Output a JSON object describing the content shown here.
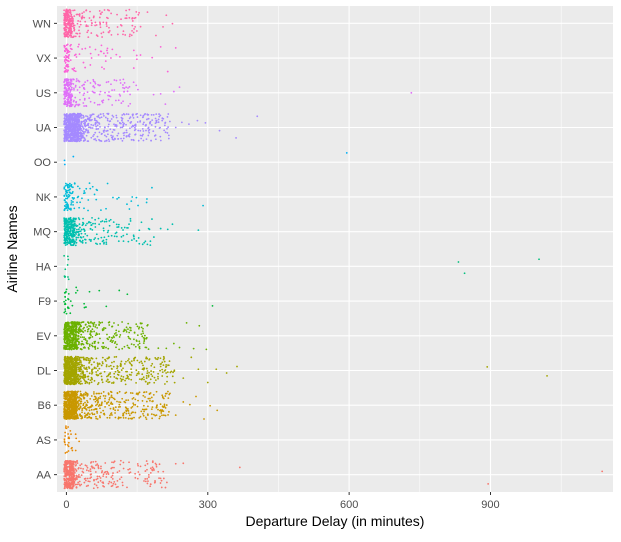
{
  "chart_data": {
    "type": "scatter",
    "title": "",
    "xlabel": "Departure Delay (in minutes)",
    "ylabel": "Airline Names",
    "xlim": [
      -20,
      1160
    ],
    "x_ticks": [
      0,
      300,
      600,
      900
    ],
    "x_tick_labels": [
      "0",
      "300",
      "600",
      "900"
    ],
    "categories": [
      "AA",
      "AS",
      "B6",
      "DL",
      "EV",
      "F9",
      "HA",
      "MQ",
      "NK",
      "OO",
      "UA",
      "US",
      "VX",
      "WN"
    ],
    "grid": true,
    "legend": "none",
    "jitter": "vertical jitter within each airline row",
    "colors": {
      "AA": "#F8766D",
      "AS": "#E58700",
      "B6": "#C99800",
      "DL": "#A3A500",
      "EV": "#6BB100",
      "F9": "#00BA38",
      "HA": "#00BF7D",
      "MQ": "#00C0AF",
      "NK": "#00BCD8",
      "OO": "#00B0F6",
      "UA": "#A58AFF",
      "US": "#DF70F8",
      "VX": "#FB61D7",
      "WN": "#FF66A8"
    },
    "panel_background": "#EBEBEB",
    "gridline_color": "#FFFFFF",
    "series": [
      {
        "category": "AA",
        "dense_max": 15,
        "spread_max": 215,
        "count": 520,
        "outliers": [
          232,
          248,
          368,
          895,
          1137
        ]
      },
      {
        "category": "AS",
        "dense_max": 5,
        "spread_max": 35,
        "count": 30,
        "outliers": []
      },
      {
        "category": "B6",
        "dense_max": 20,
        "spread_max": 220,
        "count": 900,
        "outliers": [
          232,
          248,
          262,
          275,
          292,
          305,
          320
        ]
      },
      {
        "category": "DL",
        "dense_max": 20,
        "spread_max": 230,
        "count": 900,
        "outliers": [
          248,
          265,
          280,
          300,
          318,
          340,
          362,
          893,
          1020
        ]
      },
      {
        "category": "EV",
        "dense_max": 20,
        "spread_max": 175,
        "count": 650,
        "outliers": [
          195,
          212,
          228,
          240,
          255,
          270,
          282,
          297
        ]
      },
      {
        "category": "F9",
        "dense_max": 5,
        "spread_max": 150,
        "count": 35,
        "outliers": [
          310
        ]
      },
      {
        "category": "HA",
        "dense_max": 3,
        "spread_max": 15,
        "count": 10,
        "outliers": [
          832,
          845,
          1003
        ]
      },
      {
        "category": "MQ",
        "dense_max": 15,
        "spread_max": 190,
        "count": 430,
        "outliers": [
          200,
          215,
          225,
          280
        ]
      },
      {
        "category": "NK",
        "dense_max": 10,
        "spread_max": 190,
        "count": 120,
        "outliers": [
          290
        ]
      },
      {
        "category": "OO",
        "dense_max": 0,
        "spread_max": 25,
        "count": 3,
        "outliers": [
          595
        ]
      },
      {
        "category": "UA",
        "dense_max": 25,
        "spread_max": 220,
        "count": 950,
        "outliers": [
          232,
          245,
          260,
          278,
          295,
          325,
          360,
          405
        ]
      },
      {
        "category": "US",
        "dense_max": 10,
        "spread_max": 165,
        "count": 280,
        "outliers": [
          185,
          200,
          210,
          228,
          240,
          732
        ]
      },
      {
        "category": "VX",
        "dense_max": 5,
        "spread_max": 165,
        "count": 110,
        "outliers": [
          182,
          200,
          215,
          232
        ]
      },
      {
        "category": "WN",
        "dense_max": 10,
        "spread_max": 160,
        "count": 330,
        "outliers": [
          172,
          190,
          205,
          212,
          225
        ]
      }
    ]
  }
}
